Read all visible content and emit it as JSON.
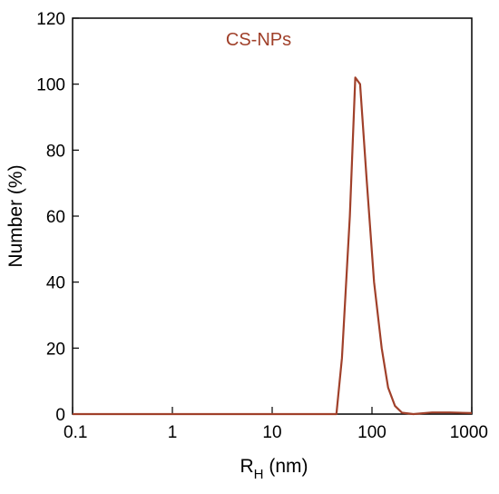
{
  "chart_data": {
    "type": "line",
    "xscale": "log",
    "xlim": [
      0.1,
      1000
    ],
    "ylim": [
      0,
      120
    ],
    "x_ticks": [
      0.1,
      1,
      10,
      100,
      1000
    ],
    "x_tick_labels": [
      "0.1",
      "1",
      "10",
      "100",
      "1000"
    ],
    "y_ticks": [
      0,
      20,
      40,
      60,
      80,
      100,
      120
    ],
    "y_tick_labels": [
      "0",
      "20",
      "40",
      "60",
      "80",
      "100",
      "120"
    ],
    "xlabel_main": "R",
    "xlabel_sub": "H",
    "xlabel_unit": " (nm)",
    "ylabel": "Number (%)",
    "grid": false,
    "series": [
      {
        "name": "CS-NPs",
        "color": "#a0402a",
        "x": [
          0.1,
          44,
          50,
          60,
          68,
          76,
          88,
          105,
          125,
          145,
          170,
          200,
          260,
          400,
          600,
          1000
        ],
        "y": [
          0,
          0,
          17,
          60,
          102,
          100,
          72,
          40,
          20,
          8,
          2.5,
          0.4,
          0,
          0.5,
          0.5,
          0.3
        ]
      }
    ]
  }
}
